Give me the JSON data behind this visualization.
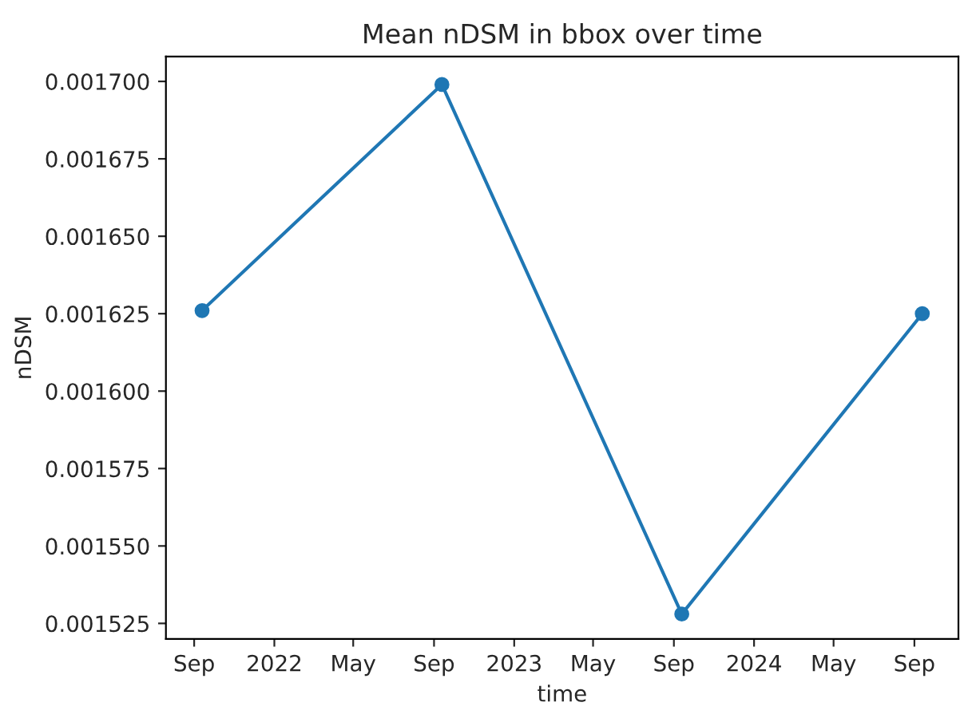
{
  "chart_data": {
    "type": "line",
    "title": "Mean nDSM in bbox over time",
    "xlabel": "time",
    "ylabel": "nDSM",
    "x": [
      "2021-09-13",
      "2022-09-13",
      "2023-09-13",
      "2024-09-13"
    ],
    "series": [
      {
        "color": "#1f77b4",
        "values": [
          0.001626,
          0.001699,
          0.001528,
          0.001625
        ]
      }
    ],
    "marker": "circle",
    "line_style": "solid",
    "grid": false,
    "legend": false,
    "xlim": [
      "2021-07-20",
      "2024-11-07"
    ],
    "xticks": [
      {
        "value": "2021-09-01",
        "label": "Sep"
      },
      {
        "value": "2022-01-01",
        "label": "2022"
      },
      {
        "value": "2022-05-01",
        "label": "May"
      },
      {
        "value": "2022-09-01",
        "label": "Sep"
      },
      {
        "value": "2023-01-01",
        "label": "2023"
      },
      {
        "value": "2023-05-01",
        "label": "May"
      },
      {
        "value": "2023-09-01",
        "label": "Sep"
      },
      {
        "value": "2024-01-01",
        "label": "2024"
      },
      {
        "value": "2024-05-01",
        "label": "May"
      },
      {
        "value": "2024-09-01",
        "label": "Sep"
      }
    ],
    "ylim": [
      0.00152,
      0.001708
    ],
    "yticks": [
      {
        "value": 0.001525,
        "label": "0.001525"
      },
      {
        "value": 0.00155,
        "label": "0.001550"
      },
      {
        "value": 0.001575,
        "label": "0.001575"
      },
      {
        "value": 0.0016,
        "label": "0.001600"
      },
      {
        "value": 0.001625,
        "label": "0.001625"
      },
      {
        "value": 0.00165,
        "label": "0.001650"
      },
      {
        "value": 0.001675,
        "label": "0.001675"
      },
      {
        "value": 0.0017,
        "label": "0.001700"
      }
    ]
  }
}
